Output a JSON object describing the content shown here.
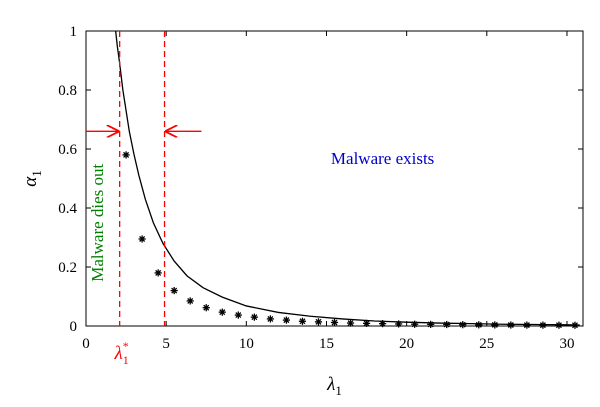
{
  "chart_data": {
    "type": "line",
    "title": "",
    "xlabel": "λ",
    "xlabel_subscript": "1",
    "ylabel": "α",
    "ylabel_subscript": "1",
    "xlim": [
      0,
      31
    ],
    "ylim": [
      0,
      1
    ],
    "xticks": [
      0,
      5,
      10,
      15,
      20,
      25,
      30
    ],
    "yticks": [
      0,
      0.2,
      0.4,
      0.6,
      0.8,
      1
    ],
    "grid": false,
    "series": [
      {
        "line_color": "#000000",
        "marker": "asterisk",
        "curve_x": [
          1.85,
          1.95,
          2.1,
          2.3,
          2.5,
          2.7,
          3.0,
          3.3,
          3.7,
          4.2,
          4.8,
          5.5,
          6.3,
          7.3,
          8.5,
          10,
          12,
          14,
          16,
          18,
          20,
          22,
          24,
          26,
          28,
          30,
          30.8
        ],
        "curve_y": [
          1.0,
          0.95,
          0.89,
          0.8,
          0.73,
          0.66,
          0.58,
          0.51,
          0.43,
          0.35,
          0.28,
          0.22,
          0.17,
          0.13,
          0.098,
          0.068,
          0.046,
          0.033,
          0.024,
          0.017,
          0.013,
          0.01,
          0.008,
          0.006,
          0.005,
          0.004,
          0.0035
        ],
        "points_x": [
          2.5,
          3.5,
          4.5,
          5.5,
          6.5,
          7.5,
          8.5,
          9.5,
          10.5,
          11.5,
          12.5,
          13.5,
          14.5,
          15.5,
          16.5,
          17.5,
          18.5,
          19.5,
          20.5,
          21.5,
          22.5,
          23.5,
          24.5,
          25.5,
          26.5,
          27.5,
          28.5,
          29.5,
          30.5
        ],
        "points_y": [
          0.58,
          0.295,
          0.18,
          0.12,
          0.085,
          0.062,
          0.047,
          0.037,
          0.03,
          0.024,
          0.02,
          0.016,
          0.014,
          0.012,
          0.01,
          0.009,
          0.008,
          0.007,
          0.006,
          0.0055,
          0.005,
          0.0045,
          0.004,
          0.0037,
          0.0034,
          0.0031,
          0.0029,
          0.0027,
          0.0025
        ]
      }
    ],
    "vlines": [
      {
        "x": 2.1,
        "color": "#ff0000",
        "style": "dashed"
      },
      {
        "x": 4.9,
        "color": "#ff0000",
        "style": "dashed"
      }
    ],
    "threshold_label": {
      "text": "λ",
      "subscript": "1",
      "superscript": "*",
      "x": 2.1,
      "color": "#ff0000"
    },
    "arrows": [
      {
        "from_x": 0.0,
        "to_x": 2.0,
        "y": 0.66,
        "color": "#ff0000"
      },
      {
        "from_x": 7.2,
        "to_x": 5.0,
        "y": 0.66,
        "color": "#ff0000"
      }
    ],
    "annotations": [
      {
        "text": "Malware dies out",
        "x": 1.05,
        "y": 0.35,
        "rotation": -90,
        "color": "#008000"
      },
      {
        "text": "Malware exists",
        "x": 18.5,
        "y": 0.55,
        "rotation": 0,
        "color": "#0000cc"
      }
    ]
  }
}
